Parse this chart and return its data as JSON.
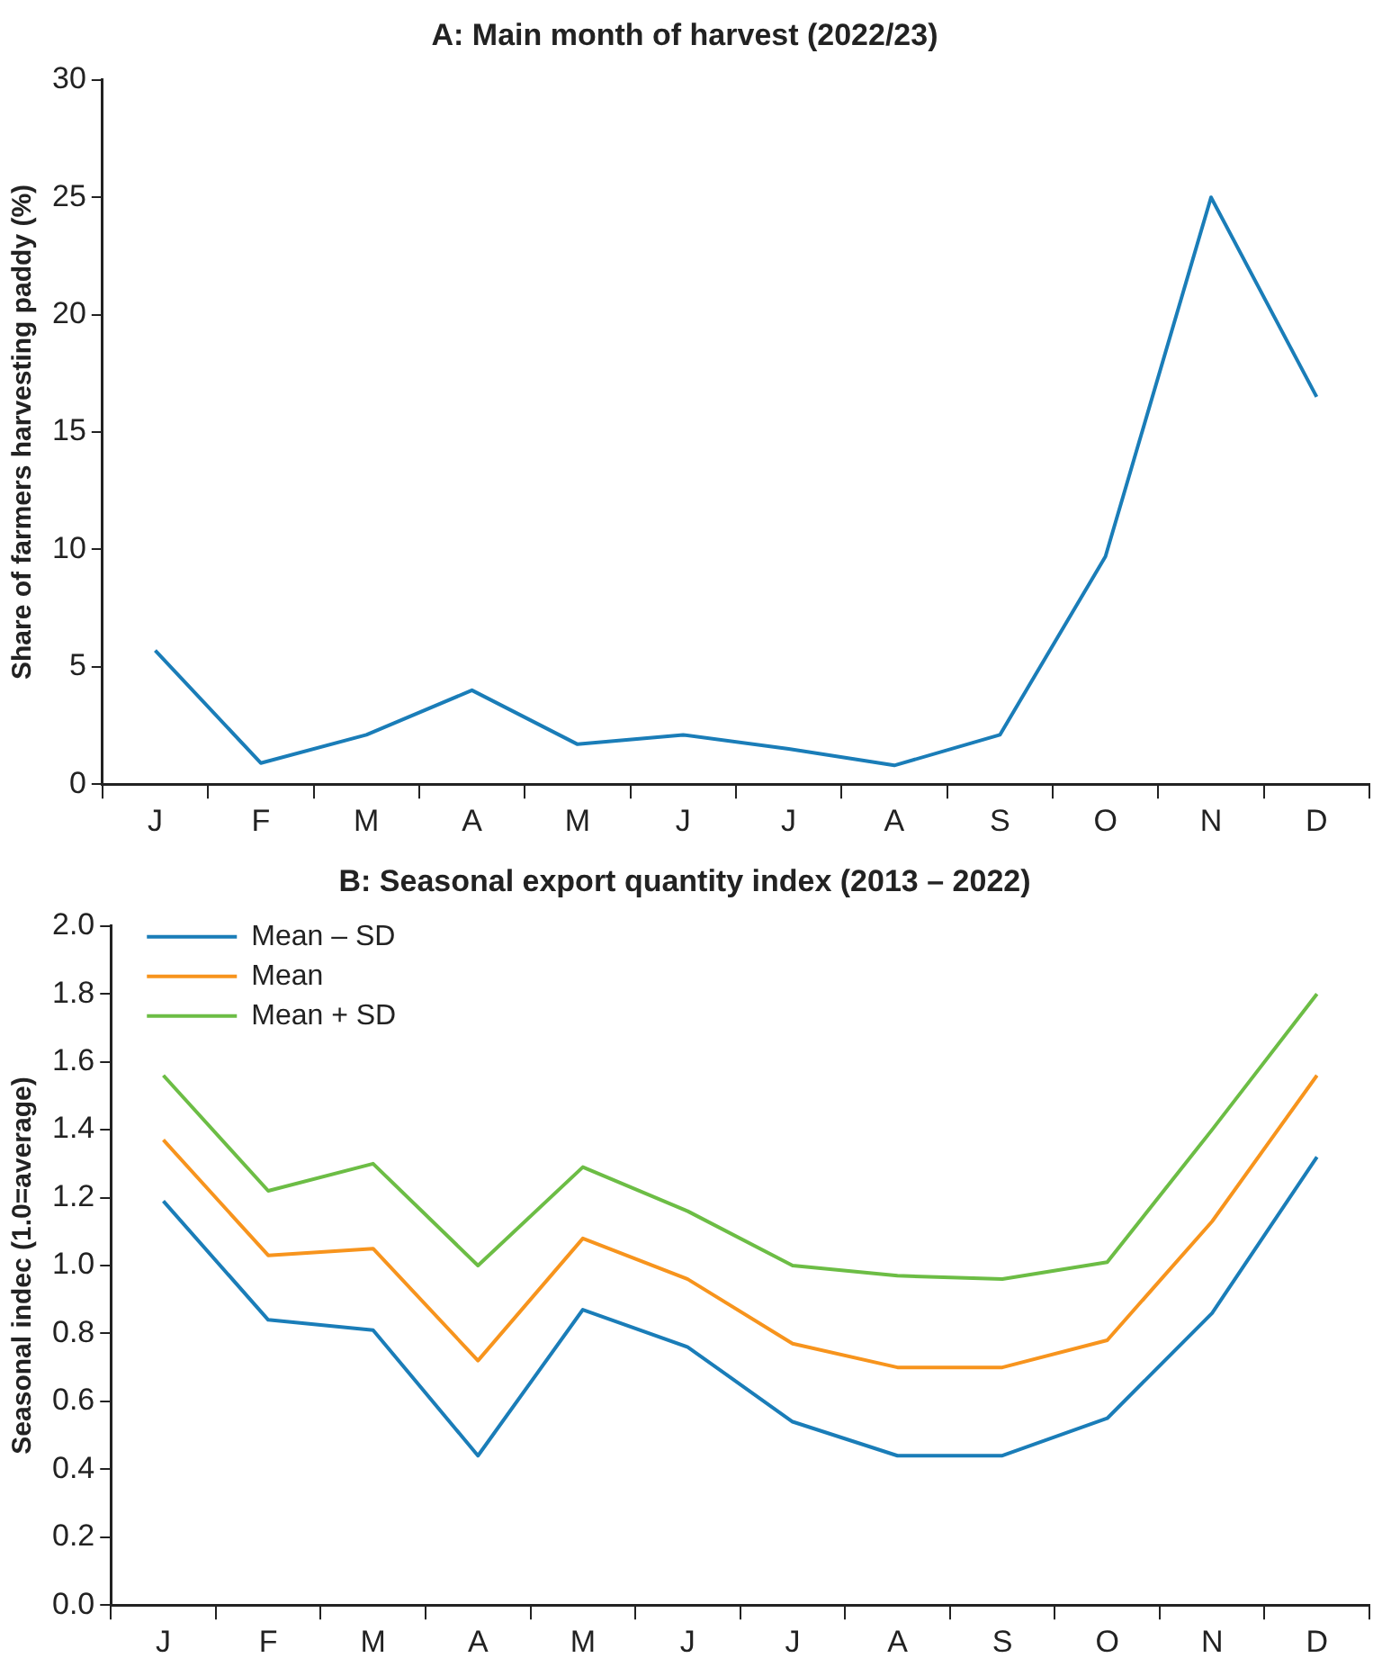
{
  "chart_data": [
    {
      "type": "line",
      "title": "A: Main month of harvest (2022/23)",
      "ylabel": "Share of farmers harvesting paddy (%)",
      "categories": [
        "J",
        "F",
        "M",
        "A",
        "M",
        "J",
        "J",
        "A",
        "S",
        "O",
        "N",
        "D"
      ],
      "series": [
        {
          "color": "#1a7db8",
          "values": [
            5.7,
            0.9,
            2.1,
            4.0,
            1.7,
            2.1,
            1.5,
            0.8,
            2.1,
            9.7,
            25.0,
            16.5
          ]
        }
      ],
      "ylim": [
        0,
        30
      ],
      "yticks": [
        0,
        5,
        10,
        15,
        20,
        25,
        30
      ],
      "grid": false,
      "legend": false
    },
    {
      "type": "line",
      "title": "B: Seasonal export quantity index (2013 – 2022)",
      "ylabel": "Seasonal indec (1.0=average)",
      "categories": [
        "J",
        "F",
        "M",
        "A",
        "M",
        "J",
        "J",
        "A",
        "S",
        "O",
        "N",
        "D"
      ],
      "series": [
        {
          "name": "Mean – SD",
          "color": "#1a7db8",
          "values": [
            1.19,
            0.84,
            0.81,
            0.44,
            0.87,
            0.76,
            0.54,
            0.44,
            0.44,
            0.55,
            0.86,
            1.32
          ]
        },
        {
          "name": "Mean",
          "color": "#f7941d",
          "values": [
            1.37,
            1.03,
            1.05,
            0.72,
            1.08,
            0.96,
            0.77,
            0.7,
            0.7,
            0.78,
            1.13,
            1.56
          ]
        },
        {
          "name": "Mean + SD",
          "color": "#6cbd45",
          "values": [
            1.56,
            1.22,
            1.3,
            1.0,
            1.29,
            1.16,
            1.0,
            0.97,
            0.96,
            1.01,
            1.4,
            1.8
          ]
        }
      ],
      "ylim": [
        0,
        2.0
      ],
      "yticks": [
        {
          "value": 0,
          "label": "0.0"
        },
        {
          "value": 0.2,
          "label": "0.2"
        },
        {
          "value": 0.4,
          "label": "0.4"
        },
        {
          "value": 0.6,
          "label": "0.6"
        },
        {
          "value": 0.8,
          "label": "0.8"
        },
        {
          "value": 1.0,
          "label": "1.0"
        },
        {
          "value": 1.2,
          "label": "1.2"
        },
        {
          "value": 1.4,
          "label": "1.4"
        },
        {
          "value": 1.6,
          "label": "1.6"
        },
        {
          "value": 1.8,
          "label": "1.8"
        },
        {
          "value": 2.0,
          "label": "2.0"
        }
      ],
      "grid": false,
      "legend": "top left"
    }
  ]
}
